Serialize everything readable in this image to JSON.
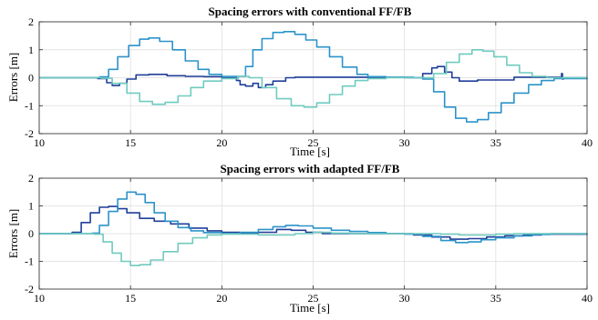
{
  "chart_data": [
    {
      "type": "line",
      "title": "Spacing errors with conventional FF/FB",
      "xlabel": "Time [s]",
      "ylabel": "Errors [m]",
      "xlim": [
        10,
        40
      ],
      "ylim": [
        -2,
        2
      ],
      "xticks": [
        "10",
        "15",
        "20",
        "25",
        "30",
        "35",
        "40"
      ],
      "yticks": [
        "2",
        "1",
        "0",
        "-1",
        "-2"
      ],
      "grid": true,
      "series": [
        {
          "color": "#1f3f99",
          "x": [
            10,
            13.2,
            13.7,
            14.0,
            14.4,
            14.8,
            15.3,
            16,
            17,
            18,
            19,
            20,
            20.8,
            21.0,
            21.3,
            21.7,
            22.0,
            22.4,
            22.8,
            23.5,
            24,
            26,
            28,
            30,
            31.0,
            31.5,
            31.8,
            32.2,
            32.6,
            33.0,
            34,
            36,
            38,
            38.6,
            38.65,
            38.7,
            40
          ],
          "y": [
            0.0,
            -0.03,
            -0.18,
            -0.28,
            -0.2,
            -0.05,
            0.1,
            0.12,
            0.07,
            0.05,
            0.04,
            0.0,
            -0.1,
            -0.25,
            -0.3,
            -0.2,
            -0.35,
            -0.25,
            -0.12,
            0.0,
            0.02,
            0.02,
            0.01,
            0.0,
            0.15,
            0.35,
            0.4,
            0.2,
            0.0,
            -0.12,
            -0.08,
            0.02,
            0.02,
            0.15,
            -0.05,
            0.0,
            0.0
          ]
        },
        {
          "color": "#2b93c9",
          "x": [
            10,
            13.3,
            13.8,
            14.3,
            14.9,
            15.5,
            16.0,
            16.6,
            17.3,
            18.0,
            18.7,
            19.3,
            20,
            20.9,
            21.3,
            21.7,
            22.2,
            22.8,
            23.4,
            24.0,
            24.6,
            25.2,
            25.9,
            26.6,
            27.4,
            28.0,
            29,
            30.5,
            31.0,
            31.6,
            32.2,
            32.8,
            33.4,
            34.0,
            34.6,
            35.3,
            36.0,
            36.8,
            37.5,
            38.2,
            40
          ],
          "y": [
            0.0,
            0.03,
            0.3,
            0.75,
            1.15,
            1.38,
            1.42,
            1.3,
            1.0,
            0.6,
            0.3,
            0.12,
            0.05,
            0.05,
            0.4,
            1.0,
            1.4,
            1.62,
            1.65,
            1.55,
            1.35,
            1.1,
            0.75,
            0.38,
            0.12,
            0.04,
            0.02,
            0.0,
            -0.05,
            -0.5,
            -1.05,
            -1.45,
            -1.58,
            -1.5,
            -1.25,
            -0.9,
            -0.55,
            -0.25,
            -0.1,
            -0.03,
            0.0
          ]
        },
        {
          "color": "#6fcbbf",
          "x": [
            10,
            13.4,
            14.0,
            14.8,
            15.5,
            16.2,
            16.9,
            17.6,
            18.3,
            19.0,
            20,
            20.9,
            21.5,
            22.2,
            23.0,
            23.8,
            24.5,
            25.2,
            25.9,
            26.6,
            27.3,
            28.0,
            29,
            30,
            31.0,
            31.6,
            32.3,
            33.0,
            33.7,
            34.3,
            34.9,
            35.6,
            36.3,
            37.0,
            37.8,
            40
          ],
          "y": [
            0.0,
            -0.02,
            -0.2,
            -0.55,
            -0.85,
            -0.95,
            -0.88,
            -0.65,
            -0.35,
            -0.12,
            -0.03,
            0.05,
            0.0,
            -0.35,
            -0.75,
            -1.0,
            -1.05,
            -0.9,
            -0.6,
            -0.3,
            -0.1,
            -0.03,
            0.0,
            0.0,
            0.0,
            0.15,
            0.55,
            0.85,
            1.0,
            0.95,
            0.75,
            0.45,
            0.18,
            0.05,
            0.0,
            0.0
          ]
        }
      ]
    },
    {
      "type": "line",
      "title": "Spacing errors with adapted FF/FB",
      "xlabel": "Time [s]",
      "ylabel": "Errors [m]",
      "xlim": [
        10,
        40
      ],
      "ylim": [
        -2,
        2
      ],
      "xticks": [
        "10",
        "15",
        "20",
        "25",
        "30",
        "35",
        "40"
      ],
      "yticks": [
        "2",
        "1",
        "0",
        "-1",
        "-2"
      ],
      "grid": true,
      "series": [
        {
          "color": "#1f3f99",
          "x": [
            10,
            11.8,
            12.3,
            12.8,
            13.3,
            13.8,
            14.3,
            14.8,
            15.5,
            16.3,
            17.2,
            18.2,
            19.2,
            20,
            21,
            22,
            23.0,
            23.8,
            24.6,
            25.5,
            26.5,
            27.5,
            28.5,
            29.5,
            30.5,
            31.5,
            32.5,
            33.5,
            34.5,
            35.5,
            36.5,
            37.5,
            40
          ],
          "y": [
            0.0,
            0.05,
            0.4,
            0.75,
            0.95,
            0.98,
            0.9,
            0.75,
            0.55,
            0.45,
            0.35,
            0.2,
            0.1,
            0.05,
            0.02,
            0.05,
            0.15,
            0.12,
            0.05,
            0.0,
            0.0,
            0.0,
            0.0,
            0.0,
            -0.05,
            -0.12,
            -0.2,
            -0.18,
            -0.12,
            -0.08,
            -0.05,
            -0.02,
            0.0
          ]
        },
        {
          "color": "#2b93c9",
          "x": [
            10,
            12.9,
            13.3,
            13.8,
            14.3,
            14.8,
            15.3,
            15.8,
            16.3,
            16.9,
            17.6,
            18.3,
            19.0,
            20,
            21,
            22,
            22.8,
            23.5,
            24.2,
            25.0,
            26.0,
            27.0,
            28.0,
            29.0,
            30.0,
            31.0,
            32.0,
            32.8,
            33.5,
            34.2,
            35.0,
            36.0,
            37.0,
            38.0,
            40
          ],
          "y": [
            0.0,
            0.02,
            0.3,
            0.8,
            1.25,
            1.5,
            1.42,
            1.12,
            0.75,
            0.45,
            0.22,
            0.1,
            0.04,
            0.0,
            0.05,
            0.15,
            0.25,
            0.3,
            0.28,
            0.2,
            0.12,
            0.08,
            0.04,
            0.0,
            -0.02,
            -0.1,
            -0.25,
            -0.32,
            -0.3,
            -0.22,
            -0.15,
            -0.08,
            -0.03,
            0.0,
            0.0
          ]
        },
        {
          "color": "#6fcbbf",
          "x": [
            10,
            13.0,
            13.5,
            14.0,
            14.5,
            15.0,
            15.5,
            16.1,
            16.8,
            17.6,
            18.4,
            19.2,
            20,
            21,
            22,
            23,
            24,
            25,
            26,
            27,
            28,
            29,
            30,
            31,
            32,
            33,
            34,
            35,
            36,
            38,
            40
          ],
          "y": [
            0.0,
            -0.02,
            -0.3,
            -0.7,
            -1.0,
            -1.15,
            -1.12,
            -0.95,
            -0.65,
            -0.35,
            -0.15,
            -0.05,
            -0.02,
            -0.02,
            -0.05,
            -0.05,
            0.0,
            0.05,
            0.02,
            0.0,
            0.0,
            0.0,
            0.0,
            0.0,
            -0.02,
            -0.05,
            -0.05,
            -0.02,
            0.0,
            0.0,
            0.0
          ]
        }
      ]
    }
  ]
}
